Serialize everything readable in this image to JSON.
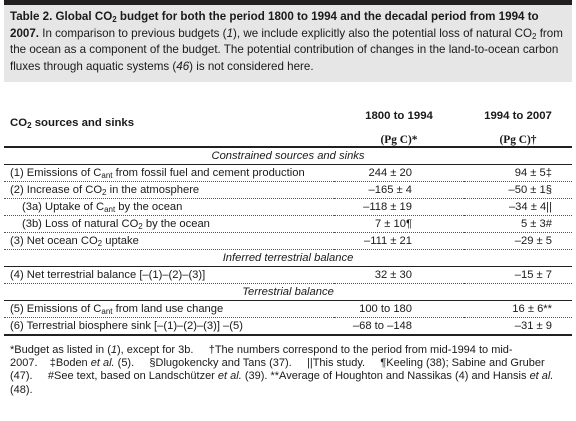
{
  "caption": {
    "title_a": "Table 2. Global CO",
    "title_sub": "2",
    "title_b": " budget for both the period 1800 to 1994 and the decadal period from 1994 to 2007.",
    "text_a": " In comparison to previous budgets (",
    "text_ref1": "1",
    "text_b": "), we include explicitly also the potential loss of natural CO",
    "text_sub": "2",
    "text_c": " from the ocean as a component of the budget. The potential contribution of changes in the land-to-ocean carbon fluxes through aquatic systems (",
    "text_ref2": "46",
    "text_d": ") is not considered here."
  },
  "header": {
    "sources_label_a": "CO",
    "sources_label_sub": "2",
    "sources_label_b": " sources and sinks",
    "col1_line1": "1800 to 1994",
    "col1_line2": "(Pg C)*",
    "col2_line1": "1994 to 2007",
    "col2_line2": "(Pg C)†"
  },
  "sections": {
    "constrained": "Constrained sources and sinks",
    "inferred": "Inferred terrestrial balance",
    "terrestrial": "Terrestrial balance"
  },
  "rows": [
    {
      "a": "(1) Emissions of C",
      "sub": "ant",
      "b": " from fossil fuel and cement production",
      "v1": "244 ± 20",
      "v2": "94 ± 5‡"
    },
    {
      "a": "(2) Increase of CO",
      "sub": "2",
      "b": " in the atmosphere",
      "v1": "–165 ± 4",
      "v2": "–50 ± 1§"
    },
    {
      "a": "(3a) Uptake of C",
      "sub": "ant",
      "b": " by the ocean",
      "v1": "–118 ± 19",
      "v2": "–34 ± 4||"
    },
    {
      "a": "(3b) Loss of natural CO",
      "sub": "2",
      "b": " by the ocean",
      "v1": "7 ± 10¶",
      "v2": "5 ± 3#"
    },
    {
      "a": "(3) Net ocean CO",
      "sub": "2",
      "b": " uptake",
      "v1": "–111 ± 21",
      "v2": "–29 ± 5"
    },
    {
      "a": "(4) Net terrestrial balance [–(1)–(2)–(3)]",
      "sub": "",
      "b": "",
      "v1": "32 ± 30",
      "v2": "–15 ± 7"
    },
    {
      "a": "(5) Emissions of C",
      "sub": "ant",
      "b": " from land use change",
      "v1": "100 to 180",
      "v2": "16 ± 6**"
    },
    {
      "a": "(6) Terrestrial biosphere sink [–(1)–(2)–(3)] –(5)",
      "sub": "",
      "b": "",
      "v1": "–68 to –148",
      "v2": "–31 ± 9"
    }
  ],
  "footnotes": {
    "f1": "*Budget as listed in (",
    "f1_ref": "1",
    "f1_b": "), except for 3b.     †The numbers correspond to the period from mid-1994 to mid-2007.    ‡Boden ",
    "f1_etal": "et al.",
    "f1_c": " (5).     §Dlugokencky and Tans (37).     ||This study.     ¶Keeling (38); Sabine and Gruber (47).     #See text, based on Landschützer ",
    "f1_etal2": "et al.",
    "f1_d": " (39). **Average of Houghton and Nassikas (4) and Hansis ",
    "f1_etal3": "et al.",
    "f1_e": " (48)."
  }
}
